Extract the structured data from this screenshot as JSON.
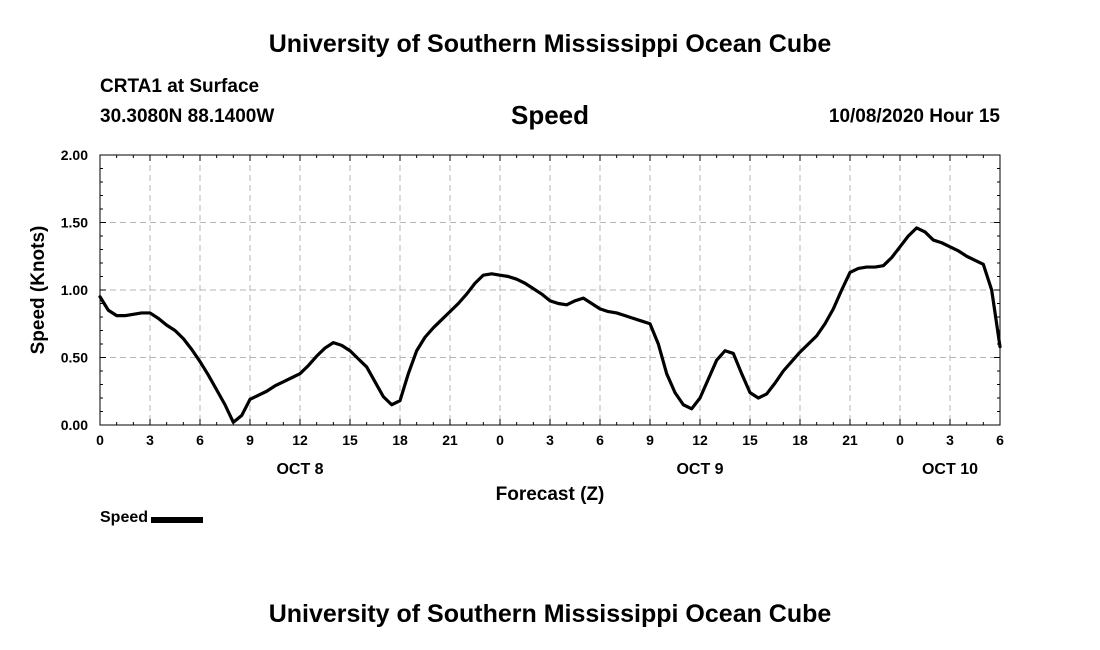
{
  "header": {
    "title": "University of Southern Mississippi Ocean Cube",
    "station": "CRTA1 at Surface",
    "coords": "30.3080N 88.1400W",
    "variable": "Speed",
    "datetime": "10/08/2020 Hour 15"
  },
  "footer": {
    "title": "University of Southern Mississippi Ocean Cube"
  },
  "legend": {
    "label": "Speed"
  },
  "chart_data": {
    "type": "line",
    "title": "Speed",
    "xlabel": "Forecast (Z)",
    "ylabel": "Speed (Knots)",
    "xlim": [
      0,
      54
    ],
    "ylim": [
      0,
      2
    ],
    "grid": true,
    "legend_position": "bottom-left",
    "x_ticks": [
      0,
      3,
      6,
      9,
      12,
      15,
      18,
      21,
      24,
      27,
      30,
      33,
      36,
      39,
      42,
      45,
      48,
      51,
      54
    ],
    "x_tick_labels": [
      "0",
      "3",
      "6",
      "9",
      "12",
      "15",
      "18",
      "21",
      "0",
      "3",
      "6",
      "9",
      "12",
      "15",
      "18",
      "21",
      "0",
      "3",
      "6"
    ],
    "date_labels": [
      {
        "x": 12,
        "label": "OCT 8"
      },
      {
        "x": 36,
        "label": "OCT 9"
      },
      {
        "x": 51,
        "label": "OCT 10"
      }
    ],
    "y_ticks": [
      0,
      0.5,
      1.0,
      1.5,
      2.0
    ],
    "y_tick_labels": [
      "0.00",
      "0.50",
      "1.00",
      "1.50",
      "2.00"
    ],
    "series": [
      {
        "name": "Speed",
        "color": "#000000",
        "x": [
          0,
          0.5,
          1,
          1.5,
          2,
          2.5,
          3,
          3.5,
          4,
          4.5,
          5,
          5.5,
          6,
          6.5,
          7,
          7.5,
          8,
          8.5,
          9,
          9.5,
          10,
          10.5,
          11,
          11.5,
          12,
          12.5,
          13,
          13.5,
          14,
          14.5,
          15,
          15.5,
          16,
          16.5,
          17,
          17.5,
          18,
          18.5,
          19,
          19.5,
          20,
          20.5,
          21,
          21.5,
          22,
          22.5,
          23,
          23.5,
          24,
          24.5,
          25,
          25.5,
          26,
          26.5,
          27,
          27.5,
          28,
          28.5,
          29,
          29.5,
          30,
          30.5,
          31,
          31.5,
          32,
          32.5,
          33,
          33.5,
          34,
          34.5,
          35,
          35.5,
          36,
          36.5,
          37,
          37.5,
          38,
          38.5,
          39,
          39.5,
          40,
          40.5,
          41,
          41.5,
          42,
          42.5,
          43,
          43.5,
          44,
          44.5,
          45,
          45.5,
          46,
          46.5,
          47,
          47.5,
          48,
          48.5,
          49,
          49.5,
          50,
          50.5,
          51,
          51.5,
          52,
          52.5,
          53,
          53.5,
          54
        ],
        "values": [
          0.95,
          0.85,
          0.81,
          0.81,
          0.82,
          0.83,
          0.83,
          0.79,
          0.74,
          0.7,
          0.64,
          0.56,
          0.47,
          0.37,
          0.26,
          0.15,
          0.02,
          0.07,
          0.19,
          0.22,
          0.25,
          0.29,
          0.32,
          0.35,
          0.38,
          0.44,
          0.51,
          0.57,
          0.61,
          0.59,
          0.55,
          0.49,
          0.43,
          0.32,
          0.21,
          0.15,
          0.18,
          0.38,
          0.55,
          0.65,
          0.72,
          0.78,
          0.84,
          0.9,
          0.97,
          1.05,
          1.11,
          1.12,
          1.11,
          1.1,
          1.08,
          1.05,
          1.01,
          0.97,
          0.92,
          0.9,
          0.89,
          0.92,
          0.94,
          0.9,
          0.86,
          0.84,
          0.83,
          0.81,
          0.79,
          0.77,
          0.75,
          0.6,
          0.38,
          0.24,
          0.15,
          0.12,
          0.2,
          0.34,
          0.48,
          0.55,
          0.53,
          0.38,
          0.24,
          0.2,
          0.23,
          0.31,
          0.4,
          0.47,
          0.54,
          0.6,
          0.66,
          0.75,
          0.86,
          1.0,
          1.13,
          1.16,
          1.17,
          1.17,
          1.18,
          1.24,
          1.32,
          1.4,
          1.46,
          1.43,
          1.37,
          1.35,
          1.32,
          1.29,
          1.25,
          1.22,
          1.19,
          1.0,
          0.58
        ]
      }
    ]
  }
}
